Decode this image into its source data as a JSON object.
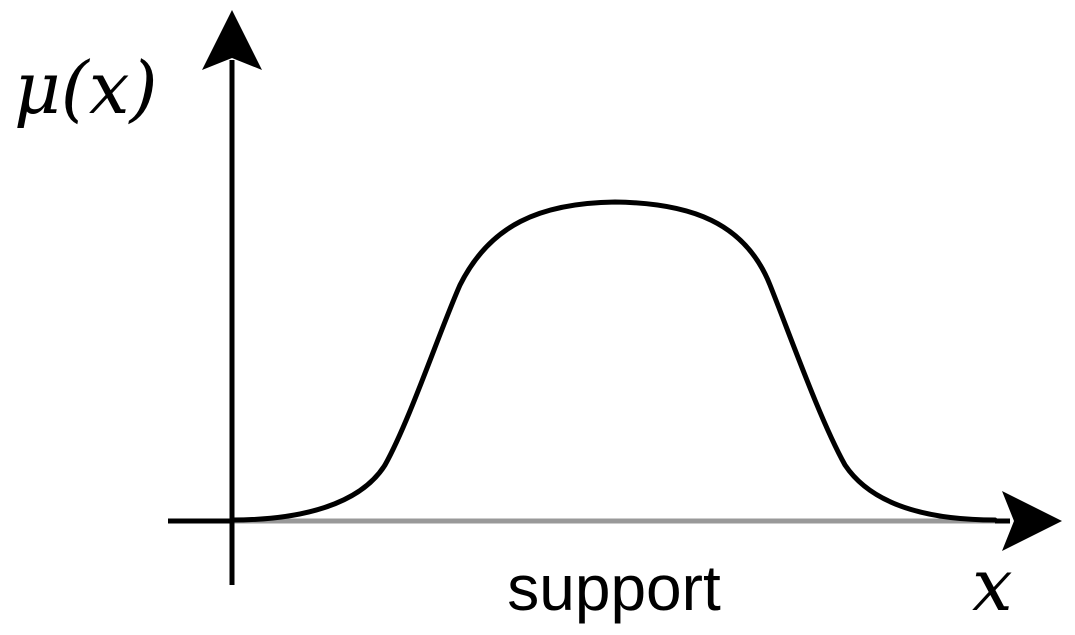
{
  "diagram": {
    "y_axis_label": "μ(x)",
    "x_axis_label": "x",
    "support_label": "support",
    "colors": {
      "axes": "#000000",
      "curve": "#000000",
      "support": "#999999",
      "background": "#ffffff"
    }
  }
}
